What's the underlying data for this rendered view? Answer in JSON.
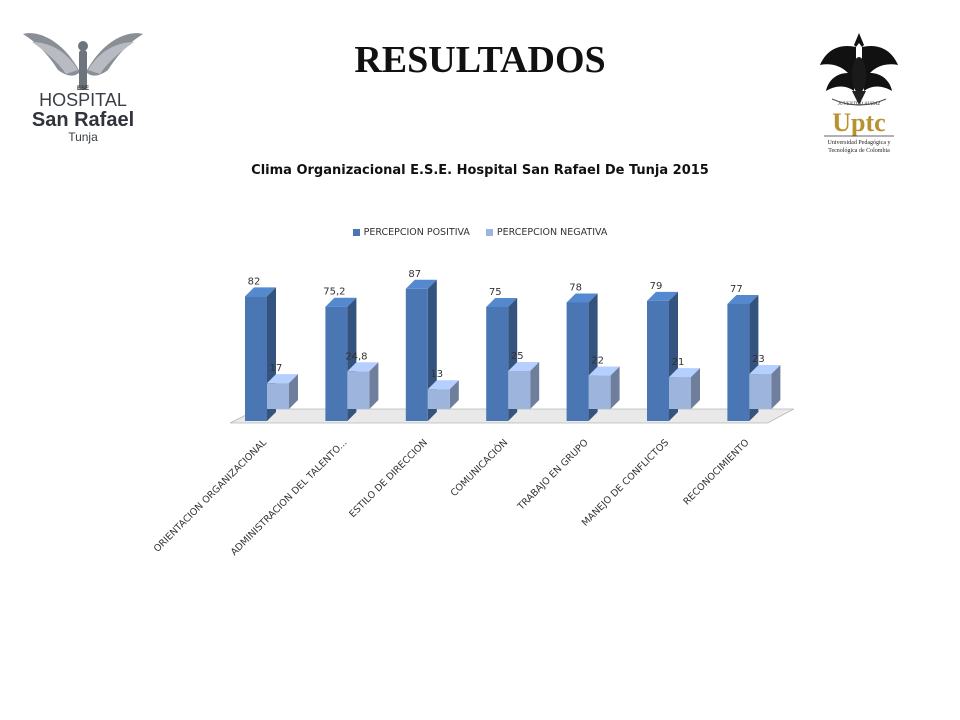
{
  "slide": {
    "title": "RESULTADOS"
  },
  "logos": {
    "hospital": {
      "line1": "HOSPITAL",
      "line2": "San Rafael",
      "line3": "Tunja",
      "crest_text": "ESE",
      "icon": "winged-emblem-icon"
    },
    "university": {
      "name": "Uptc",
      "subtitle_line1": "Universidad Pedagógica y",
      "subtitle_line2": "Tecnológica de Colombia",
      "motto": "JUVENTUD AUDAZ",
      "icon": "eagle-icon"
    }
  },
  "colors": {
    "positive": "#4a77b4",
    "negative": "#9db4dd",
    "floor": "#e9e9e9"
  },
  "chart_data": {
    "type": "bar",
    "title": "Clima Organizacional E.S.E. Hospital San Rafael De Tunja 2015",
    "categories": [
      "ORIENTACION ORGANIZACIONAL",
      "ADMINISTRACION DEL TALENTO...",
      "ESTILO DE DIRECCION",
      "COMUNICACIÓN",
      "TRABAJO EN GRUPO",
      "MANEJO DE CONFLICTOS",
      "RECONOCIMIENTO"
    ],
    "series": [
      {
        "name": "PERCEPCION POSITIVA",
        "values": [
          82,
          75.2,
          87,
          75,
          78,
          79,
          77
        ],
        "labels": [
          "82",
          "75,2",
          "87",
          "75",
          "78",
          "79",
          "77"
        ]
      },
      {
        "name": "PERCEPCION NEGATIVA",
        "values": [
          17,
          24.8,
          13,
          25,
          22,
          21,
          23
        ],
        "labels": [
          "17",
          "24,8",
          "13",
          "25",
          "22",
          "21",
          "23"
        ]
      }
    ],
    "ylim": [
      0,
      100
    ],
    "grid": false,
    "legend_position": "top",
    "style": "3d-column"
  }
}
